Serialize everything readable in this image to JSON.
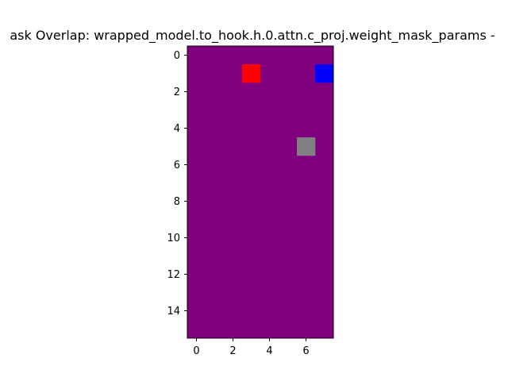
{
  "chart_data": {
    "type": "heatmap",
    "title": "ask Overlap: wrapped_model.to_hook.h.0.attn.c_proj.weight_mask_params -",
    "xlabel": "",
    "ylabel": "",
    "n_cols": 8,
    "n_rows": 16,
    "xlim": [
      -0.5,
      7.5
    ],
    "ylim": [
      15.5,
      -0.5
    ],
    "x_ticks": [
      0,
      2,
      4,
      6
    ],
    "y_ticks": [
      0,
      2,
      4,
      6,
      8,
      10,
      12,
      14
    ],
    "grid": false,
    "legend": "none",
    "background_color": "#800080",
    "cells": [
      {
        "col": 3,
        "row": 1,
        "color": "#ff0000"
      },
      {
        "col": 7,
        "row": 1,
        "color": "#0000ff"
      },
      {
        "col": 6,
        "row": 5,
        "color": "#808080"
      }
    ]
  }
}
